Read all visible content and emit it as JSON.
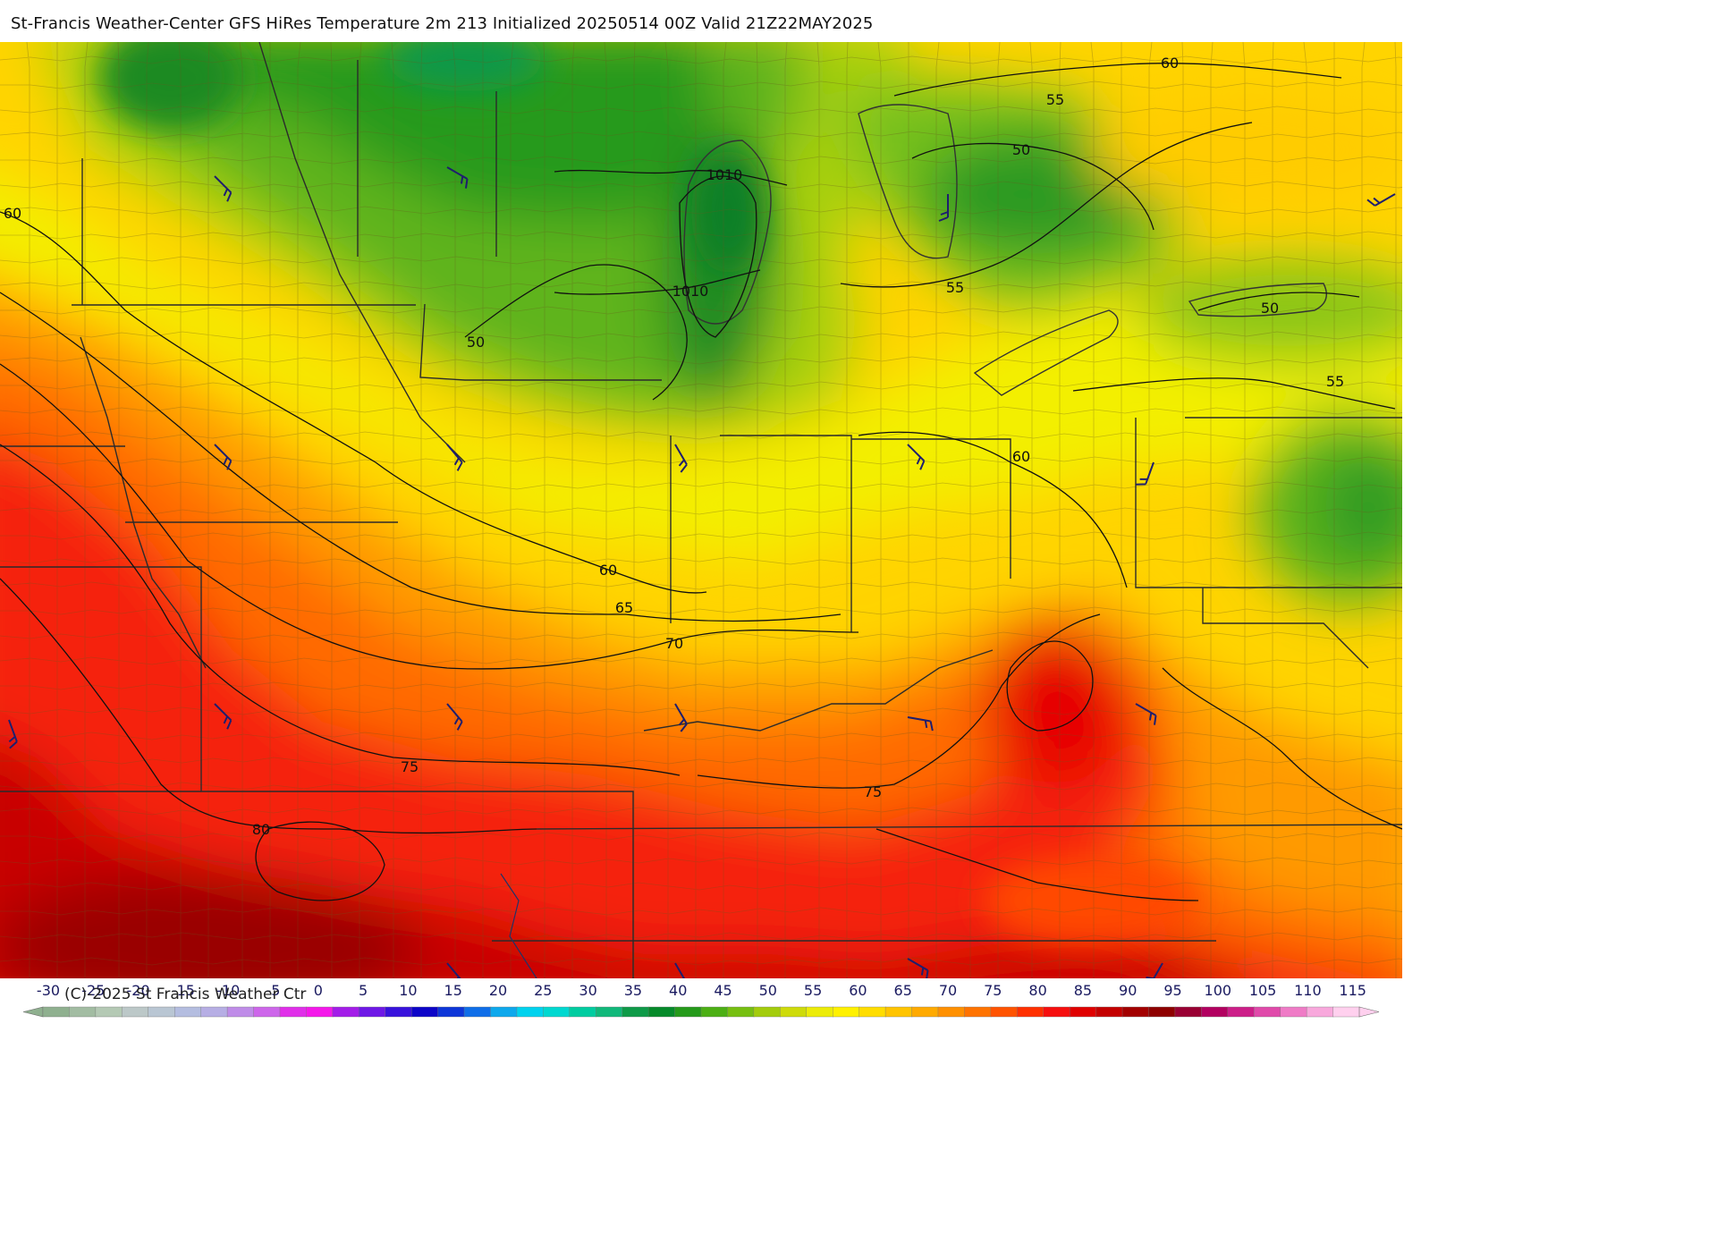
{
  "title": "St-Francis Weather-Center GFS HiRes Temperature 2m  213 Initialized 20250514 00Z Valid 21Z22MAY2025",
  "copyright": "(C)-2025 St Francis Weather Ctr",
  "legend": {
    "ticks": [
      "-30",
      "-25",
      "-20",
      "-15",
      "-10",
      "-5",
      "0",
      "5",
      "10",
      "15",
      "20",
      "25",
      "30",
      "35",
      "40",
      "45",
      "50",
      "55",
      "60",
      "65",
      "70",
      "75",
      "80",
      "85",
      "90",
      "95",
      "100",
      "105",
      "110",
      "115"
    ],
    "colors": [
      "#8fb08f",
      "#a2bca2",
      "#b4c9b4",
      "#bcc8c8",
      "#b9c6d3",
      "#b4bde0",
      "#b6aee4",
      "#bf8ce8",
      "#cd66ea",
      "#e02fe9",
      "#f418ea",
      "#a31de8",
      "#6e18e6",
      "#3812dc",
      "#0d05c8",
      "#0d36d8",
      "#0f6ee8",
      "#0ea8ec",
      "#00d2ee",
      "#00d8d0",
      "#00cca0",
      "#10b87a",
      "#0e9a48",
      "#068a2a",
      "#259a1a",
      "#4caf14",
      "#76bf10",
      "#a3cc0c",
      "#cedb0a",
      "#ecec08",
      "#fff100",
      "#ffdd00",
      "#ffc400",
      "#ffaa00",
      "#ff9000",
      "#ff7300",
      "#ff5300",
      "#ff3000",
      "#f60f0f",
      "#e00000",
      "#c40000",
      "#a30000",
      "#8e0000",
      "#990033",
      "#b20060",
      "#cc1e88",
      "#e04aaa",
      "#ef7bc6",
      "#f8a8dc",
      "#ffd0ee"
    ]
  },
  "contour_labels": [
    {
      "text": "60"
    },
    {
      "text": "55"
    },
    {
      "text": "50"
    },
    {
      "text": "1010"
    },
    {
      "text": "60"
    },
    {
      "text": "1010"
    },
    {
      "text": "55"
    },
    {
      "text": "50"
    },
    {
      "text": "50"
    },
    {
      "text": "55"
    },
    {
      "text": "60"
    },
    {
      "text": "60"
    },
    {
      "text": "65"
    },
    {
      "text": "70"
    },
    {
      "text": "75"
    },
    {
      "text": "75"
    },
    {
      "text": "80"
    }
  ],
  "colors": {
    "cool_green": "#2a8f1e",
    "mid_green": "#7cc21a",
    "yellow": "#f2f000",
    "orange": "#ff9a00",
    "red": "#f21a0a",
    "deep_red": "#a80000",
    "wind_barb": "#1e1e6e"
  }
}
